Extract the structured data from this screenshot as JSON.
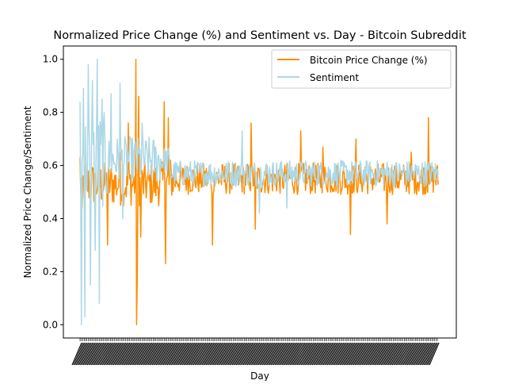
{
  "chart_data": {
    "type": "line",
    "title": "Normalized Price Change (%) and Sentiment vs. Day - Bitcoin Subreddit",
    "xlabel": "Day",
    "ylabel": "Normalized Price Change/Sentiment",
    "ylim": [
      -0.05,
      1.05
    ],
    "yticks": [
      "0.0",
      "0.2",
      "0.4",
      "0.6",
      "0.8",
      "1.0"
    ],
    "x_tick_labels": "dense unreadable rotated day labels",
    "n_days": 520,
    "legend_position": "upper right",
    "grid": false,
    "series": [
      {
        "name": "Bitcoin Price Change (%)",
        "color": "#ff8c00",
        "baseline": 0.55,
        "spread": 0.06,
        "notable_points": [
          {
            "x": 0,
            "y": 0.63
          },
          {
            "x": 3,
            "y": 0.44
          },
          {
            "x": 40,
            "y": 0.3
          },
          {
            "x": 58,
            "y": 0.65
          },
          {
            "x": 70,
            "y": 0.76
          },
          {
            "x": 81,
            "y": 1.0
          },
          {
            "x": 82,
            "y": 0.0
          },
          {
            "x": 83,
            "y": 0.17
          },
          {
            "x": 85,
            "y": 0.86
          },
          {
            "x": 88,
            "y": 0.33
          },
          {
            "x": 122,
            "y": 0.84
          },
          {
            "x": 124,
            "y": 0.23
          },
          {
            "x": 128,
            "y": 0.78
          },
          {
            "x": 192,
            "y": 0.3
          },
          {
            "x": 248,
            "y": 0.76
          },
          {
            "x": 254,
            "y": 0.36
          },
          {
            "x": 320,
            "y": 0.73
          },
          {
            "x": 352,
            "y": 0.67
          },
          {
            "x": 392,
            "y": 0.34
          },
          {
            "x": 400,
            "y": 0.7
          },
          {
            "x": 445,
            "y": 0.38
          },
          {
            "x": 480,
            "y": 0.65
          },
          {
            "x": 505,
            "y": 0.78
          }
        ]
      },
      {
        "name": "Sentiment",
        "color": "#add8e6",
        "baseline": 0.57,
        "spread": 0.05,
        "notable_points": [
          {
            "x": 0,
            "y": 0.84
          },
          {
            "x": 2,
            "y": 0.0
          },
          {
            "x": 5,
            "y": 0.89
          },
          {
            "x": 7,
            "y": 0.03
          },
          {
            "x": 12,
            "y": 0.98
          },
          {
            "x": 15,
            "y": 0.15
          },
          {
            "x": 18,
            "y": 0.92
          },
          {
            "x": 22,
            "y": 0.28
          },
          {
            "x": 25,
            "y": 1.0
          },
          {
            "x": 28,
            "y": 0.08
          },
          {
            "x": 32,
            "y": 0.85
          },
          {
            "x": 45,
            "y": 0.87
          },
          {
            "x": 58,
            "y": 0.91
          },
          {
            "x": 62,
            "y": 0.4
          },
          {
            "x": 90,
            "y": 0.76
          },
          {
            "x": 235,
            "y": 0.73
          },
          {
            "x": 260,
            "y": 0.42
          },
          {
            "x": 300,
            "y": 0.44
          }
        ]
      }
    ]
  }
}
